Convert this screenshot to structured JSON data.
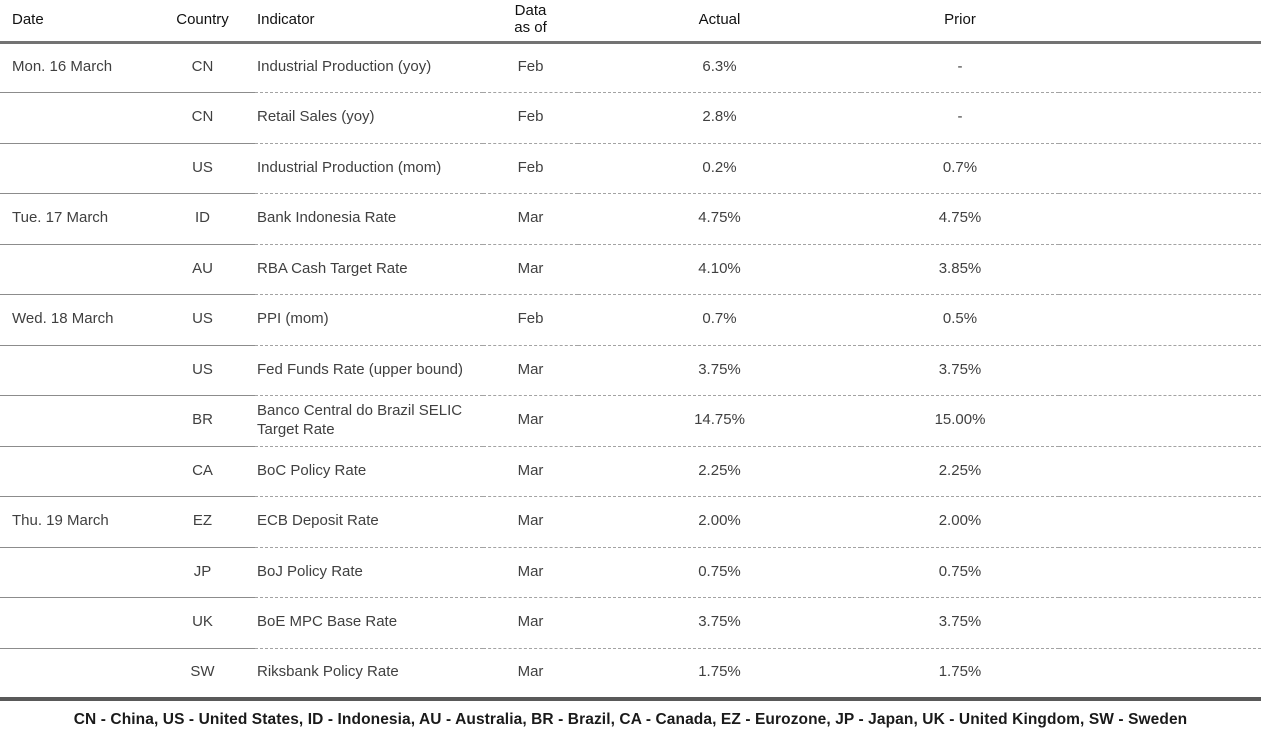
{
  "chart_data": {
    "type": "table",
    "columns": [
      "Date",
      "Country",
      "Indicator",
      "Data as of",
      "Actual",
      "Prior"
    ],
    "rows": [
      {
        "date": "Mon. 16 March",
        "country": "CN",
        "indicator": "Industrial Production (yoy)",
        "data_as_of": "Feb",
        "actual": "6.3%",
        "prior": "-"
      },
      {
        "date": "",
        "country": "CN",
        "indicator": "Retail Sales (yoy)",
        "data_as_of": "Feb",
        "actual": "2.8%",
        "prior": "-"
      },
      {
        "date": "",
        "country": "US",
        "indicator": "Industrial Production (mom)",
        "data_as_of": "Feb",
        "actual": "0.2%",
        "prior": "0.7%"
      },
      {
        "date": "Tue. 17 March",
        "country": "ID",
        "indicator": "Bank Indonesia Rate",
        "data_as_of": "Mar",
        "actual": "4.75%",
        "prior": "4.75%"
      },
      {
        "date": "",
        "country": "AU",
        "indicator": "RBA Cash Target Rate",
        "data_as_of": "Mar",
        "actual": "4.10%",
        "prior": "3.85%"
      },
      {
        "date": "Wed. 18 March",
        "country": "US",
        "indicator": "PPI (mom)",
        "data_as_of": "Feb",
        "actual": "0.7%",
        "prior": "0.5%"
      },
      {
        "date": "",
        "country": "US",
        "indicator": "Fed Funds Rate (upper bound)",
        "data_as_of": "Mar",
        "actual": "3.75%",
        "prior": "3.75%"
      },
      {
        "date": "",
        "country": "BR",
        "indicator": "Banco Central do Brazil SELIC Target Rate",
        "data_as_of": "Mar",
        "actual": "14.75%",
        "prior": "15.00%"
      },
      {
        "date": "",
        "country": "CA",
        "indicator": "BoC Policy Rate",
        "data_as_of": "Mar",
        "actual": "2.25%",
        "prior": "2.25%"
      },
      {
        "date": "Thu. 19 March",
        "country": "EZ",
        "indicator": "ECB Deposit Rate",
        "data_as_of": "Mar",
        "actual": "2.00%",
        "prior": "2.00%"
      },
      {
        "date": "",
        "country": "JP",
        "indicator": "BoJ Policy Rate",
        "data_as_of": "Mar",
        "actual": "0.75%",
        "prior": "0.75%"
      },
      {
        "date": "",
        "country": "UK",
        "indicator": "BoE MPC Base Rate",
        "data_as_of": "Mar",
        "actual": "3.75%",
        "prior": "3.75%"
      },
      {
        "date": "",
        "country": "SW",
        "indicator": "Riksbank Policy Rate",
        "data_as_of": "Mar",
        "actual": "1.75%",
        "prior": "1.75%"
      }
    ],
    "footnote": "CN - China, US - United States, ID - Indonesia, AU - Australia, BR - Brazil, CA - Canada, EZ - Eurozone, JP - Japan, UK - United Kingdom, SW - Sweden",
    "layout": {
      "grid": "horizontal-separators-only",
      "separator_style": "solid under Date and Country columns, dashed under remaining columns",
      "header_rule": "thick solid",
      "bottom_rule": "thick solid"
    }
  },
  "colors": {
    "header_rule": "#737373",
    "row_solid": "#8c8c8c",
    "row_dashed": "#a3a3a3",
    "bottom_rule": "#595959",
    "text_body": "#404040",
    "text_header": "#111111"
  }
}
